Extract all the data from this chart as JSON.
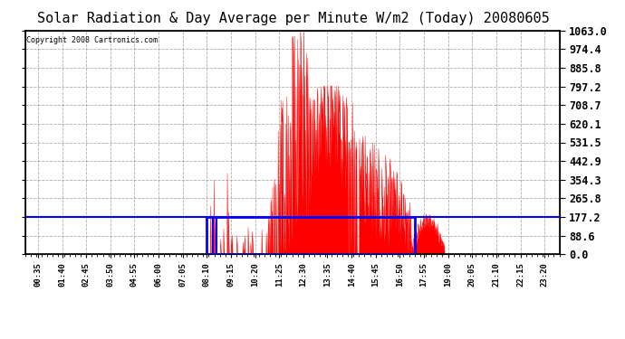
{
  "title": "Solar Radiation & Day Average per Minute W/m2 (Today) 20080605",
  "copyright": "Copyright 2008 Cartronics.com",
  "ymax": 1063.0,
  "ymin": 0.0,
  "yticks": [
    0.0,
    88.6,
    177.2,
    265.8,
    354.3,
    442.9,
    531.5,
    620.1,
    708.7,
    797.2,
    885.8,
    974.4,
    1063.0
  ],
  "bg_color": "#ffffff",
  "fill_color": "#ff0000",
  "avg_line_color": "#0000ff",
  "rect_color": "#0000ff",
  "grid_color": "#999999",
  "title_fontsize": 11,
  "x_label_fontsize": 6.5,
  "y_label_fontsize": 8.5,
  "avg_value": 177.2,
  "rect_x_start_hour": 8.17,
  "rect_x_end_hour": 17.5,
  "sunrise_hour": 8.5,
  "sunset_hour": 18.5,
  "num_points": 1440,
  "x_tick_labels": [
    "00:35",
    "01:40",
    "02:45",
    "03:50",
    "04:55",
    "06:00",
    "07:05",
    "08:10",
    "09:15",
    "10:20",
    "11:25",
    "12:30",
    "13:35",
    "14:40",
    "15:45",
    "16:50",
    "17:55",
    "19:00",
    "20:05",
    "21:10",
    "22:15",
    "23:20"
  ],
  "x_tick_hours": [
    0.583,
    1.667,
    2.75,
    3.833,
    4.917,
    6.0,
    7.083,
    8.167,
    9.25,
    10.333,
    11.417,
    12.5,
    13.583,
    14.667,
    15.75,
    16.833,
    17.917,
    19.0,
    20.083,
    21.167,
    22.25,
    23.333
  ]
}
